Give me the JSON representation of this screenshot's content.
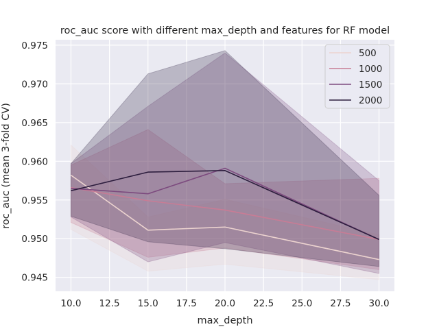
{
  "chart_data": {
    "type": "line",
    "title": "roc_auc score with different max_depth and features for RF model",
    "xlabel": "max_depth",
    "ylabel": "roc_auc (mean 3-fold CV)",
    "x": [
      10.0,
      15.0,
      20.0,
      30.0
    ],
    "xlim": [
      9.0,
      31.0
    ],
    "ylim": [
      0.9432,
      0.9757
    ],
    "xticks": [
      "10.0",
      "12.5",
      "15.0",
      "17.5",
      "20.0",
      "22.5",
      "25.0",
      "27.5",
      "30.0"
    ],
    "yticks": [
      "0.945",
      "0.950",
      "0.955",
      "0.960",
      "0.965",
      "0.970",
      "0.975"
    ],
    "grid": true,
    "legend_position": "top-right",
    "series": [
      {
        "name": "500",
        "color": "#ecd3cf",
        "values": [
          0.9582,
          0.9511,
          0.9515,
          0.9473
        ],
        "ci_lower": [
          0.9512,
          0.9458,
          0.9467,
          0.9447
        ],
        "ci_upper": [
          0.9621,
          0.9528,
          0.9551,
          0.9505
        ]
      },
      {
        "name": "1000",
        "color": "#c87c95",
        "values": [
          0.9566,
          0.9549,
          0.9537,
          0.9499
        ],
        "ci_lower": [
          0.9521,
          0.9476,
          0.9488,
          0.946
        ],
        "ci_upper": [
          0.9595,
          0.9641,
          0.9571,
          0.9578
        ]
      },
      {
        "name": "1500",
        "color": "#7c4a7e",
        "values": [
          0.9565,
          0.9558,
          0.9591,
          0.9499
        ],
        "ci_lower": [
          0.9528,
          0.947,
          0.9495,
          0.9455
        ],
        "ci_upper": [
          0.9597,
          0.9671,
          0.974,
          0.9575
        ]
      },
      {
        "name": "2000",
        "color": "#2d1e3e",
        "values": [
          0.9562,
          0.9586,
          0.9588,
          0.9499
        ],
        "ci_lower": [
          0.9529,
          0.9496,
          0.9487,
          0.9464
        ],
        "ci_upper": [
          0.9597,
          0.9713,
          0.9743,
          0.9556
        ]
      }
    ]
  }
}
